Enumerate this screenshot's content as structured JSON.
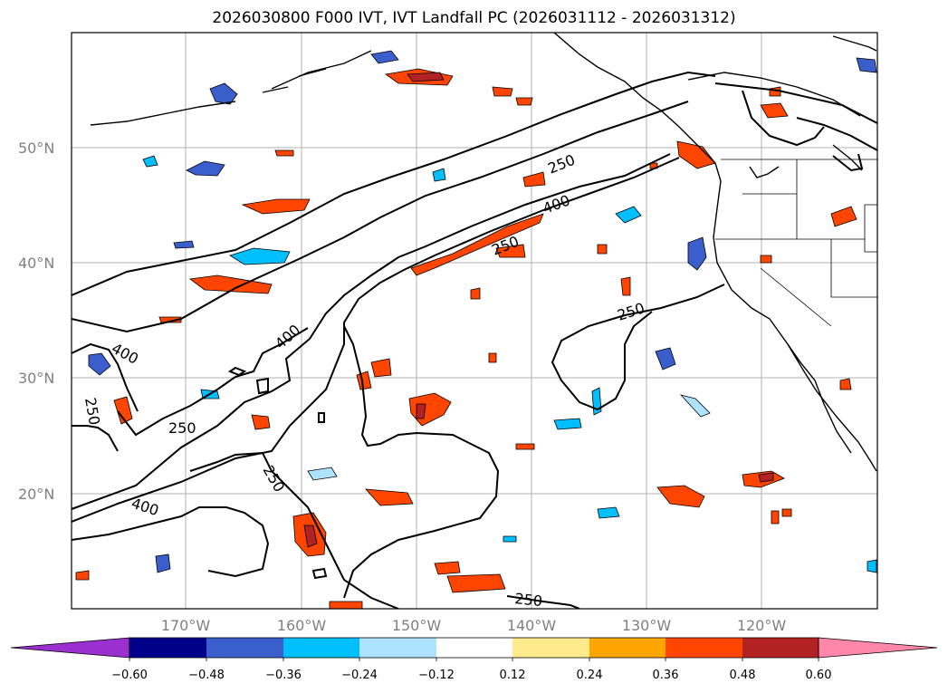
{
  "title": "2026030800 F000 IVT, IVT Landfall PC (2026031112 - 2026031312)",
  "map": {
    "lat_ticks": [
      "50°N",
      "40°N",
      "30°N",
      "20°N"
    ],
    "lon_ticks": [
      "170°W",
      "160°W",
      "150°W",
      "140°W",
      "130°W",
      "120°W"
    ],
    "contour_labels": [
      "400",
      "250",
      "250",
      "400",
      "250",
      "250",
      "400",
      "250",
      "250",
      "400",
      "250"
    ]
  },
  "colorbar": {
    "colors": [
      "#9b30d0",
      "#00008b",
      "#3a5fcd",
      "#00bfff",
      "#aee3ff",
      "#ffffff",
      "#ffeb8c",
      "#ffa500",
      "#ff4500",
      "#b22222",
      "#ff88aa"
    ],
    "labels": [
      "−0.60",
      "−0.48",
      "−0.36",
      "−0.24",
      "−0.12",
      "0.12",
      "0.24",
      "0.36",
      "0.48",
      "0.60"
    ]
  }
}
